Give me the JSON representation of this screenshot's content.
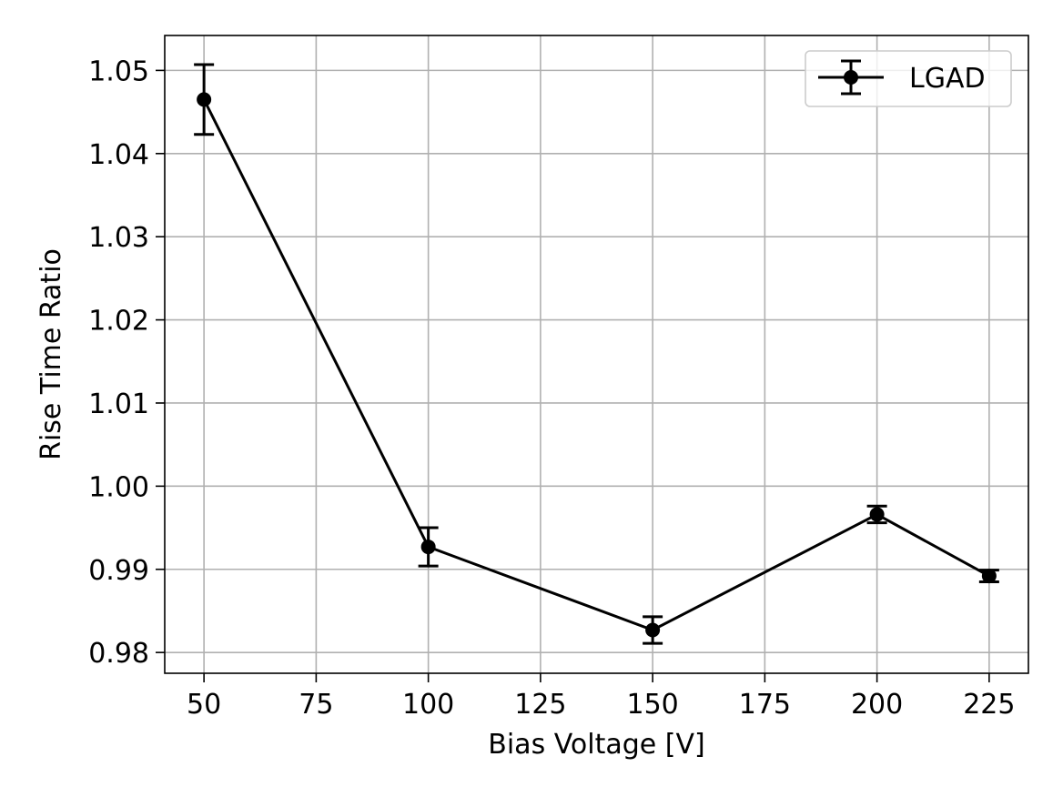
{
  "chart_data": {
    "type": "line",
    "title": "",
    "xlabel": "Bias Voltage [V]",
    "ylabel": "Rise Time Ratio",
    "xlim": [
      41.25,
      233.75
    ],
    "ylim": [
      0.9775,
      1.0542
    ],
    "xticks": [
      50,
      75,
      100,
      125,
      150,
      175,
      200,
      225
    ],
    "yticks": [
      0.98,
      0.99,
      1.0,
      1.01,
      1.02,
      1.03,
      1.04,
      1.05
    ],
    "xtick_labels": [
      "50",
      "75",
      "100",
      "125",
      "150",
      "175",
      "200",
      "225"
    ],
    "ytick_labels": [
      "0.98",
      "0.99",
      "1.00",
      "1.01",
      "1.02",
      "1.03",
      "1.04",
      "1.05"
    ],
    "grid": true,
    "legend_position": "top-right",
    "series": [
      {
        "name": "LGAD",
        "color": "#000000",
        "marker": "circle",
        "errorbars": true,
        "points": [
          {
            "x": 50,
            "y": 1.0465,
            "yerr": 0.0042
          },
          {
            "x": 100,
            "y": 0.9927,
            "yerr": 0.0023
          },
          {
            "x": 150,
            "y": 0.9827,
            "yerr": 0.0016
          },
          {
            "x": 200,
            "y": 0.9966,
            "yerr": 0.001
          },
          {
            "x": 225,
            "y": 0.9892,
            "yerr": 0.0007
          }
        ]
      }
    ]
  }
}
